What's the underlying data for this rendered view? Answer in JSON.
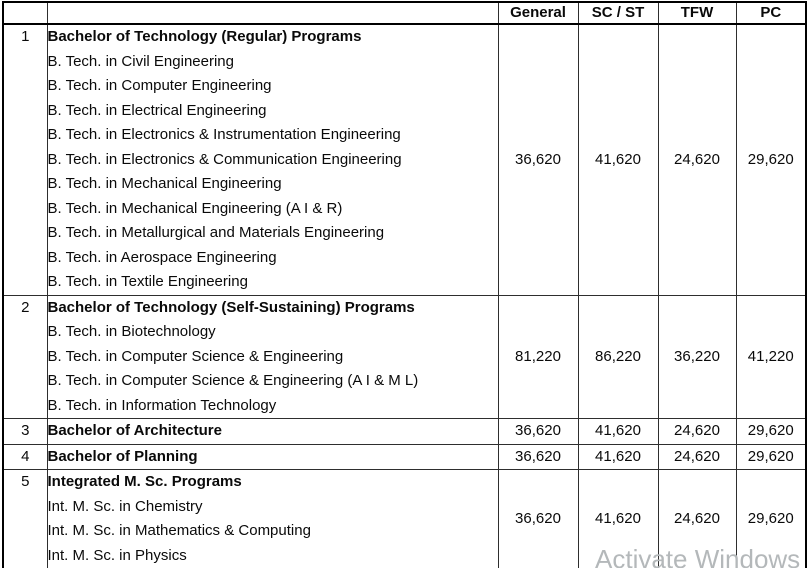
{
  "table": {
    "column_headers": {
      "num": "",
      "program": "",
      "general": "General",
      "sc_st": "SC / ST",
      "tfw": "TFW",
      "pc": "PC"
    },
    "rows": [
      {
        "num": "1",
        "title": "Bachelor of Technology (Regular) Programs",
        "programs": [
          "B. Tech. in Civil Engineering",
          "B. Tech. in Computer Engineering",
          "B. Tech. in Electrical Engineering",
          "B. Tech. in Electronics & Instrumentation Engineering",
          "B. Tech. in Electronics & Communication Engineering",
          "B. Tech. in Mechanical Engineering",
          "B. Tech. in Mechanical Engineering (A I & R)",
          "B. Tech. in Metallurgical and Materials Engineering",
          "B. Tech. in Aerospace Engineering",
          "B. Tech. in Textile Engineering"
        ],
        "fees": {
          "general": "36,620",
          "sc_st": "41,620",
          "tfw": "24,620",
          "pc": "29,620"
        }
      },
      {
        "num": "2",
        "title": "Bachelor of Technology (Self-Sustaining) Programs",
        "programs": [
          "B. Tech. in Biotechnology",
          "B. Tech. in Computer Science & Engineering",
          "B. Tech. in Computer Science & Engineering (A I & M L)",
          "B. Tech. in Information Technology"
        ],
        "fees": {
          "general": "81,220",
          "sc_st": "86,220",
          "tfw": "36,220",
          "pc": "41,220"
        }
      },
      {
        "num": "3",
        "title": "Bachelor of Architecture",
        "programs": [],
        "fees": {
          "general": "36,620",
          "sc_st": "41,620",
          "tfw": "24,620",
          "pc": "29,620"
        }
      },
      {
        "num": "4",
        "title": "Bachelor of Planning",
        "programs": [],
        "fees": {
          "general": "36,620",
          "sc_st": "41,620",
          "tfw": "24,620",
          "pc": "29,620"
        }
      },
      {
        "num": "5",
        "title": "Integrated M. Sc. Programs",
        "programs": [
          "Int. M. Sc. in Chemistry",
          "Int. M. Sc. in Mathematics & Computing",
          "Int. M. Sc. in Physics"
        ],
        "fees": {
          "general": "36,620",
          "sc_st": "41,620",
          "tfw": "24,620",
          "pc": "29,620"
        }
      }
    ]
  },
  "watermark": {
    "text": "Activate Windows",
    "color": "#b4b8ba"
  }
}
